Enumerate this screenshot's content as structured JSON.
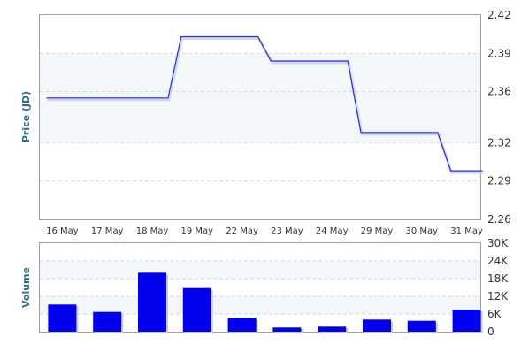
{
  "chart_data": [
    {
      "type": "line",
      "ylabel": "Price (JD)",
      "categories": [
        "16 May",
        "17 May",
        "18 May",
        "19 May",
        "22 May",
        "23 May",
        "24 May",
        "29 May",
        "30 May",
        "31 May"
      ],
      "series": [
        {
          "values": [
            2.355,
            2.355,
            2.355,
            2.403,
            2.403,
            2.384,
            2.384,
            2.328,
            2.328,
            2.298
          ]
        }
      ],
      "yticks": [
        "2.42",
        "2.39",
        "2.36",
        "2.32",
        "2.29",
        "2.26"
      ],
      "ylim": [
        2.26,
        2.42
      ],
      "grid": true,
      "colors": {
        "line": "#2a2ae0",
        "band": "#f3f7f9",
        "grid": "#c9dde6"
      }
    },
    {
      "type": "bar",
      "ylabel": "Volume",
      "categories": [
        "16 May",
        "17 May",
        "18 May",
        "19 May",
        "22 May",
        "23 May",
        "24 May",
        "29 May",
        "30 May",
        "31 May"
      ],
      "series": [
        {
          "values": [
            9200,
            6700,
            20000,
            14800,
            4600,
            1400,
            1700,
            4100,
            3700,
            7500
          ]
        }
      ],
      "yticks": [
        "30K",
        "24K",
        "18K",
        "12K",
        "6K",
        "0"
      ],
      "ylim": [
        0,
        30000
      ],
      "grid": true,
      "colors": {
        "bar": "#0000ee",
        "band": "#f3f7f9",
        "grid": "#c9dde6"
      }
    }
  ]
}
